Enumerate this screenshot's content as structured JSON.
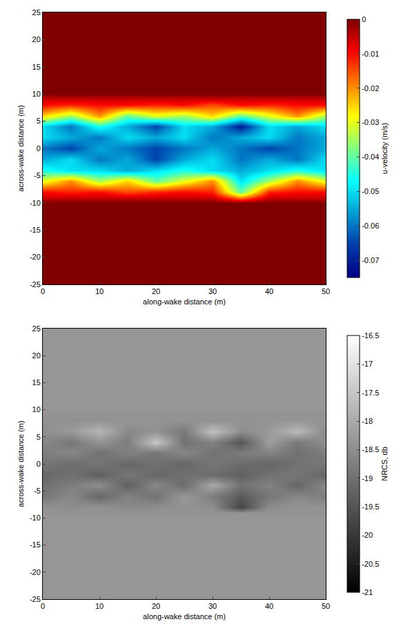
{
  "chart_data": [
    {
      "type": "heatmap",
      "color": "jet",
      "x_label": "along-wake distance (m)",
      "y_label": "across-wake distance (m)",
      "colorbar_title": "u-velocity (m/s)",
      "xlim": [
        0,
        50
      ],
      "ylim": [
        -25,
        25
      ],
      "xticks": [
        0,
        10,
        20,
        30,
        40,
        50
      ],
      "yticks": [
        -25,
        -20,
        -15,
        -10,
        -5,
        0,
        5,
        10,
        15,
        20,
        25
      ],
      "zlim": [
        -0.075,
        0
      ],
      "zticks": [
        -0.07,
        -0.06,
        -0.05,
        -0.04,
        -0.03,
        -0.02,
        -0.01,
        0
      ],
      "x": [
        0,
        5,
        10,
        15,
        20,
        25,
        30,
        35,
        40,
        45,
        50
      ],
      "y": [
        -25,
        -15,
        -10,
        -9,
        -8,
        -6,
        -4,
        -2,
        0,
        2,
        4,
        6,
        8,
        9,
        10,
        15,
        25
      ],
      "z": [
        [
          0,
          0,
          0,
          0,
          0,
          0,
          0,
          0,
          0,
          0,
          0
        ],
        [
          0,
          0,
          0,
          0,
          0,
          0,
          0,
          0,
          0,
          0,
          0
        ],
        [
          0,
          0,
          0,
          0,
          0,
          0,
          0,
          0,
          0,
          0,
          0
        ],
        [
          -0.006,
          -0.006,
          -0.006,
          -0.006,
          -0.006,
          -0.006,
          -0.006,
          -0.02,
          -0.006,
          -0.006,
          -0.006
        ],
        [
          -0.01,
          -0.012,
          -0.01,
          -0.015,
          -0.012,
          -0.01,
          -0.012,
          -0.04,
          -0.012,
          -0.01,
          -0.01
        ],
        [
          -0.03,
          -0.02,
          -0.035,
          -0.025,
          -0.04,
          -0.03,
          -0.02,
          -0.05,
          -0.035,
          -0.02,
          -0.03
        ],
        [
          -0.045,
          -0.05,
          -0.05,
          -0.055,
          -0.05,
          -0.045,
          -0.05,
          -0.055,
          -0.05,
          -0.045,
          -0.05
        ],
        [
          -0.055,
          -0.05,
          -0.06,
          -0.055,
          -0.065,
          -0.055,
          -0.05,
          -0.06,
          -0.055,
          -0.06,
          -0.05
        ],
        [
          -0.06,
          -0.065,
          -0.055,
          -0.06,
          -0.065,
          -0.06,
          -0.055,
          -0.06,
          -0.065,
          -0.06,
          -0.055
        ],
        [
          -0.05,
          -0.055,
          -0.06,
          -0.05,
          -0.055,
          -0.05,
          -0.06,
          -0.055,
          -0.05,
          -0.06,
          -0.055
        ],
        [
          -0.05,
          -0.06,
          -0.045,
          -0.055,
          -0.065,
          -0.05,
          -0.055,
          -0.07,
          -0.05,
          -0.055,
          -0.05
        ],
        [
          -0.025,
          -0.035,
          -0.02,
          -0.04,
          -0.03,
          -0.035,
          -0.025,
          -0.04,
          -0.03,
          -0.02,
          -0.035
        ],
        [
          -0.01,
          -0.012,
          -0.01,
          -0.01,
          -0.012,
          -0.01,
          -0.015,
          -0.01,
          -0.012,
          -0.01,
          -0.01
        ],
        [
          -0.006,
          -0.006,
          -0.006,
          -0.006,
          -0.006,
          -0.006,
          -0.006,
          -0.006,
          -0.006,
          -0.006,
          -0.006
        ],
        [
          0,
          0,
          0,
          0,
          0,
          0,
          0,
          0,
          0,
          0,
          0
        ],
        [
          0,
          0,
          0,
          0,
          0,
          0,
          0,
          0,
          0,
          0,
          0
        ],
        [
          0,
          0,
          0,
          0,
          0,
          0,
          0,
          0,
          0,
          0,
          0
        ]
      ]
    },
    {
      "type": "heatmap",
      "color": "gray",
      "x_label": "along-wake distance (m)",
      "y_label": "across-wake distance (m)",
      "colorbar_title": "NRCS, db",
      "xlim": [
        0,
        50
      ],
      "ylim": [
        -25,
        25
      ],
      "xticks": [
        0,
        10,
        20,
        30,
        40,
        50
      ],
      "yticks": [
        -25,
        -20,
        -15,
        -10,
        -5,
        0,
        5,
        10,
        15,
        20,
        25
      ],
      "zlim": [
        -21,
        -16.5
      ],
      "zticks": [
        -21,
        -20.5,
        -20,
        -19.5,
        -19,
        -18.5,
        -18,
        -17.5,
        -17,
        -16.5
      ],
      "x": [
        0,
        5,
        10,
        15,
        20,
        25,
        30,
        35,
        40,
        45,
        50
      ],
      "y": [
        -25,
        -15,
        -10,
        -9,
        -8,
        -6,
        -4,
        -2,
        0,
        2,
        4,
        6,
        8,
        9,
        10,
        15,
        25
      ],
      "z": [
        [
          -18.35,
          -18.35,
          -18.35,
          -18.35,
          -18.35,
          -18.35,
          -18.35,
          -18.35,
          -18.35,
          -18.35,
          -18.35
        ],
        [
          -18.35,
          -18.35,
          -18.35,
          -18.35,
          -18.35,
          -18.35,
          -18.35,
          -18.35,
          -18.35,
          -18.35,
          -18.35
        ],
        [
          -18.35,
          -18.35,
          -18.35,
          -18.35,
          -18.35,
          -18.35,
          -18.35,
          -18.35,
          -18.35,
          -18.35,
          -18.35
        ],
        [
          -18.4,
          -18.4,
          -18.4,
          -18.4,
          -18.4,
          -18.4,
          -18.4,
          -18.4,
          -18.4,
          -18.4,
          -18.4
        ],
        [
          -18.4,
          -18.5,
          -18.4,
          -18.6,
          -18.5,
          -18.4,
          -18.5,
          -19.8,
          -18.5,
          -18.4,
          -18.4
        ],
        [
          -18.9,
          -18.6,
          -19.2,
          -18.7,
          -19.0,
          -18.3,
          -18.8,
          -19.4,
          -18.9,
          -18.6,
          -18.8
        ],
        [
          -19.0,
          -18.8,
          -18.5,
          -19.3,
          -18.6,
          -19.1,
          -18.0,
          -19.0,
          -18.7,
          -19.2,
          -18.6
        ],
        [
          -19.2,
          -19.0,
          -19.3,
          -18.9,
          -19.2,
          -19.0,
          -19.1,
          -19.3,
          -19.0,
          -18.9,
          -19.2
        ],
        [
          -18.9,
          -19.1,
          -18.9,
          -19.2,
          -19.0,
          -19.2,
          -18.9,
          -19.1,
          -19.2,
          -19.0,
          -18.9
        ],
        [
          -18.8,
          -18.6,
          -19.0,
          -18.7,
          -18.9,
          -18.6,
          -19.0,
          -18.8,
          -18.7,
          -19.0,
          -18.8
        ],
        [
          -18.6,
          -18.9,
          -18.4,
          -18.8,
          -17.5,
          -19.0,
          -18.7,
          -19.5,
          -18.2,
          -18.9,
          -18.5
        ],
        [
          -18.5,
          -18.3,
          -17.8,
          -18.6,
          -18.4,
          -18.9,
          -17.6,
          -18.5,
          -18.3,
          -17.7,
          -18.6
        ],
        [
          -18.4,
          -18.45,
          -18.4,
          -18.35,
          -18.4,
          -18.4,
          -18.45,
          -18.4,
          -18.4,
          -18.35,
          -18.4
        ],
        [
          -18.4,
          -18.4,
          -18.4,
          -18.4,
          -18.4,
          -18.4,
          -18.4,
          -18.4,
          -18.4,
          -18.4,
          -18.4
        ],
        [
          -18.35,
          -18.35,
          -18.35,
          -18.35,
          -18.35,
          -18.35,
          -18.35,
          -18.35,
          -18.35,
          -18.35,
          -18.35
        ],
        [
          -18.35,
          -18.35,
          -18.35,
          -18.35,
          -18.35,
          -18.35,
          -18.35,
          -18.35,
          -18.35,
          -18.35,
          -18.35
        ],
        [
          -18.35,
          -18.35,
          -18.35,
          -18.35,
          -18.35,
          -18.35,
          -18.35,
          -18.35,
          -18.35,
          -18.35,
          -18.35
        ]
      ]
    }
  ]
}
